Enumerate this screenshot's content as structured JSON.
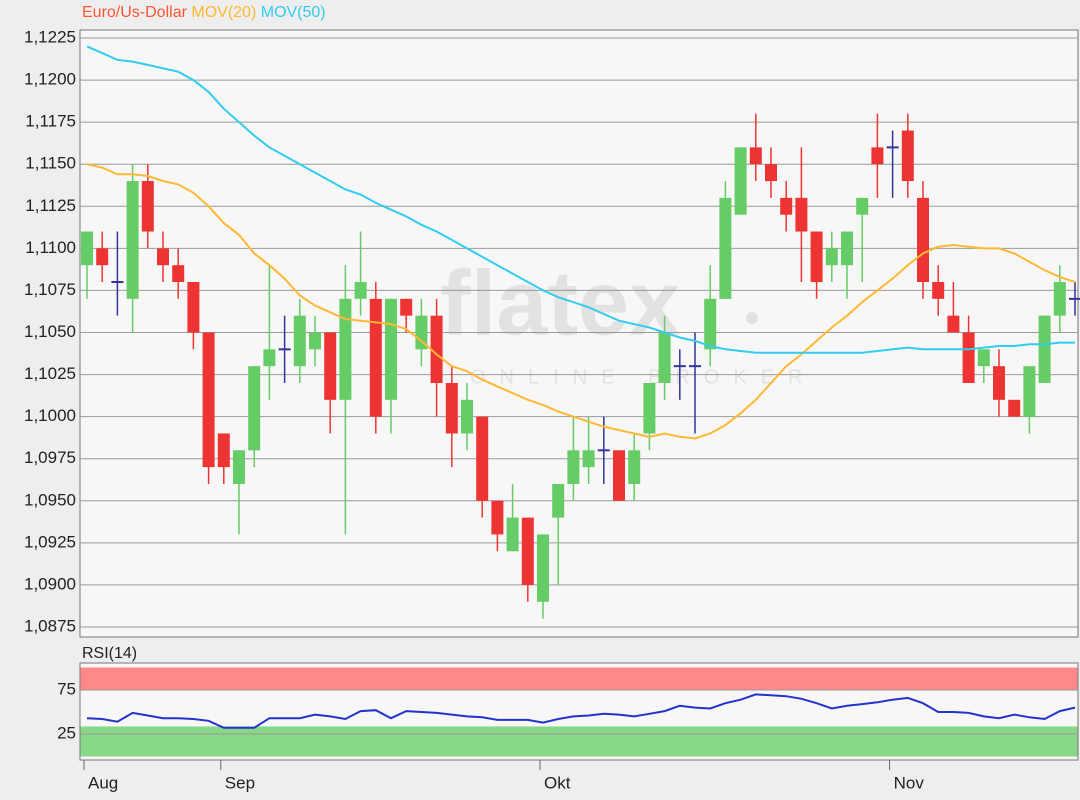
{
  "chart_data": [
    {
      "type": "candlestick",
      "name": "Euro/Us-Dollar",
      "name_color": "#ff5533",
      "up_color": "#66cc66",
      "down_color": "#ee3333",
      "doji_color": "#333399",
      "watermark": {
        "logo": "flatex",
        "tagline": "ONLINE BROKER"
      },
      "open": [
        1.109,
        1.11,
        1.108,
        1.107,
        1.114,
        1.11,
        1.109,
        1.108,
        1.105,
        1.099,
        1.096,
        1.098,
        1.103,
        1.104,
        1.103,
        1.104,
        1.105,
        1.101,
        1.107,
        1.107,
        1.101,
        1.107,
        1.104,
        1.106,
        1.102,
        1.099,
        1.1,
        1.095,
        1.092,
        1.094,
        1.089,
        1.094,
        1.096,
        1.097,
        1.098,
        1.098,
        1.096,
        1.099,
        1.102,
        1.103,
        1.103,
        1.104,
        1.107,
        1.112,
        1.116,
        1.115,
        1.113,
        1.113,
        1.111,
        1.109,
        1.109,
        1.112,
        1.116,
        1.116,
        1.117,
        1.113,
        1.108,
        1.106,
        1.105,
        1.103,
        1.103,
        1.101,
        1.1,
        1.102,
        1.106,
        1.107
      ],
      "high": [
        1.111,
        1.111,
        1.111,
        1.115,
        1.115,
        1.111,
        1.11,
        1.108,
        1.105,
        1.099,
        1.098,
        1.103,
        1.109,
        1.106,
        1.107,
        1.106,
        1.105,
        1.109,
        1.111,
        1.108,
        1.107,
        1.107,
        1.107,
        1.107,
        1.103,
        1.102,
        1.1,
        1.095,
        1.096,
        1.094,
        1.093,
        1.096,
        1.1,
        1.1,
        1.1,
        1.098,
        1.099,
        1.102,
        1.106,
        1.104,
        1.105,
        1.109,
        1.114,
        1.116,
        1.118,
        1.116,
        1.114,
        1.116,
        1.111,
        1.111,
        1.111,
        1.113,
        1.118,
        1.117,
        1.118,
        1.114,
        1.109,
        1.108,
        1.106,
        1.104,
        1.104,
        1.101,
        1.103,
        1.106,
        1.109,
        1.108
      ],
      "low": [
        1.107,
        1.108,
        1.106,
        1.105,
        1.11,
        1.108,
        1.107,
        1.104,
        1.096,
        1.096,
        1.093,
        1.097,
        1.101,
        1.102,
        1.102,
        1.103,
        1.099,
        1.093,
        1.106,
        1.099,
        1.099,
        1.105,
        1.103,
        1.1,
        1.097,
        1.098,
        1.094,
        1.092,
        1.092,
        1.089,
        1.088,
        1.09,
        1.095,
        1.096,
        1.096,
        1.095,
        1.095,
        1.098,
        1.101,
        1.101,
        1.099,
        1.103,
        1.107,
        1.112,
        1.114,
        1.113,
        1.111,
        1.108,
        1.107,
        1.108,
        1.107,
        1.108,
        1.113,
        1.113,
        1.113,
        1.107,
        1.106,
        1.105,
        1.102,
        1.102,
        1.1,
        1.1,
        1.099,
        1.102,
        1.105,
        1.106
      ],
      "close": [
        1.111,
        1.109,
        1.108,
        1.114,
        1.111,
        1.109,
        1.108,
        1.105,
        1.097,
        1.097,
        1.098,
        1.103,
        1.104,
        1.104,
        1.106,
        1.105,
        1.101,
        1.107,
        1.108,
        1.1,
        1.107,
        1.106,
        1.106,
        1.102,
        1.099,
        1.101,
        1.095,
        1.093,
        1.094,
        1.09,
        1.093,
        1.096,
        1.098,
        1.098,
        1.098,
        1.095,
        1.098,
        1.102,
        1.105,
        1.103,
        1.103,
        1.107,
        1.113,
        1.116,
        1.115,
        1.114,
        1.112,
        1.111,
        1.108,
        1.11,
        1.111,
        1.113,
        1.115,
        1.116,
        1.114,
        1.108,
        1.107,
        1.105,
        1.102,
        1.104,
        1.101,
        1.1,
        1.103,
        1.106,
        1.108,
        1.107
      ],
      "series": [
        {
          "name": "MOV(20)",
          "color": "#ffb833",
          "values": [
            1.115,
            1.1148,
            1.1144,
            1.1144,
            1.1143,
            1.114,
            1.1138,
            1.1133,
            1.1125,
            1.1115,
            1.1108,
            1.1097,
            1.109,
            1.1082,
            1.1072,
            1.1066,
            1.1062,
            1.1058,
            1.1057,
            1.1056,
            1.1055,
            1.1052,
            1.1045,
            1.1037,
            1.103,
            1.1027,
            1.1022,
            1.1018,
            1.1014,
            1.101,
            1.1007,
            1.1003,
            1.1,
            1.0997,
            1.0994,
            1.0992,
            1.099,
            1.0988,
            1.099,
            1.0988,
            1.0987,
            1.099,
            1.0995,
            1.1002,
            1.101,
            1.102,
            1.103,
            1.1037,
            1.1045,
            1.1053,
            1.106,
            1.1068,
            1.1075,
            1.1082,
            1.109,
            1.1097,
            1.1101,
            1.1102,
            1.1101,
            1.11,
            1.11,
            1.1097,
            1.1092,
            1.1087,
            1.1083,
            1.108
          ]
        },
        {
          "name": "MOV(50)",
          "color": "#33ccee",
          "values": [
            1.122,
            1.1216,
            1.1212,
            1.1211,
            1.1209,
            1.1207,
            1.1205,
            1.12,
            1.1193,
            1.1183,
            1.1175,
            1.1167,
            1.116,
            1.1155,
            1.115,
            1.1145,
            1.114,
            1.1135,
            1.1132,
            1.1127,
            1.1123,
            1.1119,
            1.1114,
            1.111,
            1.1105,
            1.11,
            1.1095,
            1.109,
            1.1085,
            1.108,
            1.1075,
            1.1071,
            1.1068,
            1.1065,
            1.1061,
            1.1057,
            1.1055,
            1.1053,
            1.105,
            1.1047,
            1.1045,
            1.1042,
            1.104,
            1.1039,
            1.1038,
            1.1038,
            1.1038,
            1.1038,
            1.1038,
            1.1038,
            1.1038,
            1.1038,
            1.1039,
            1.104,
            1.1041,
            1.104,
            1.104,
            1.104,
            1.104,
            1.1041,
            1.1042,
            1.1042,
            1.1043,
            1.1043,
            1.1044,
            1.1044
          ]
        }
      ],
      "ylim": [
        1.0875,
        1.1225
      ],
      "yticks": [
        {
          "value": 1.0875,
          "label": "1,0875"
        },
        {
          "value": 1.09,
          "label": "1,0900"
        },
        {
          "value": 1.0925,
          "label": "1,0925"
        },
        {
          "value": 1.095,
          "label": "1,0950"
        },
        {
          "value": 1.0975,
          "label": "1,0975"
        },
        {
          "value": 1.1,
          "label": "1,1000"
        },
        {
          "value": 1.1025,
          "label": "1,1025"
        },
        {
          "value": 1.105,
          "label": "1,1050"
        },
        {
          "value": 1.1075,
          "label": "1,1075"
        },
        {
          "value": 1.11,
          "label": "1,1100"
        },
        {
          "value": 1.1125,
          "label": "1,1125"
        },
        {
          "value": 1.115,
          "label": "1,1150"
        },
        {
          "value": 1.1175,
          "label": "1,1175"
        },
        {
          "value": 1.12,
          "label": "1,1200"
        },
        {
          "value": 1.1225,
          "label": "1,1225"
        }
      ],
      "grid": true
    },
    {
      "type": "line",
      "categories": [
        "Aug",
        null,
        null,
        null,
        null,
        null,
        null,
        null,
        null,
        "Sep",
        null,
        null,
        null,
        null,
        null,
        null,
        null,
        null,
        null,
        null,
        null,
        null,
        null,
        null,
        null,
        null,
        null,
        null,
        null,
        null,
        "Okt",
        null,
        null,
        null,
        null,
        null,
        null,
        null,
        null,
        null,
        null,
        null,
        null,
        null,
        null,
        null,
        null,
        null,
        null,
        null,
        null,
        null,
        null,
        "Nov",
        null,
        null,
        null,
        null,
        null,
        null,
        null,
        null,
        null,
        null,
        null,
        null
      ],
      "series": [
        {
          "name": "RSI(14)",
          "color": "#2233cc",
          "values": [
            43,
            42,
            39,
            49,
            46,
            43,
            43,
            42,
            40,
            32,
            32,
            32,
            43,
            43,
            43,
            47,
            45,
            42,
            51,
            52,
            43,
            51,
            50,
            49,
            47,
            45,
            44,
            41,
            41,
            41,
            38,
            42,
            45,
            46,
            48,
            47,
            45,
            48,
            51,
            57,
            55,
            54,
            60,
            64,
            70,
            69,
            68,
            65,
            60,
            54,
            57,
            59,
            61,
            64,
            66,
            60,
            50,
            50,
            49,
            45,
            43,
            47,
            44,
            42,
            51,
            55
          ]
        }
      ],
      "zones": [
        {
          "from": 75,
          "to": 100,
          "color": "#ff8888"
        },
        {
          "from": 0,
          "to": 33,
          "color": "#88d888"
        }
      ],
      "ylim": [
        0,
        100
      ],
      "yticks": [
        25,
        75
      ],
      "grid": true
    }
  ]
}
